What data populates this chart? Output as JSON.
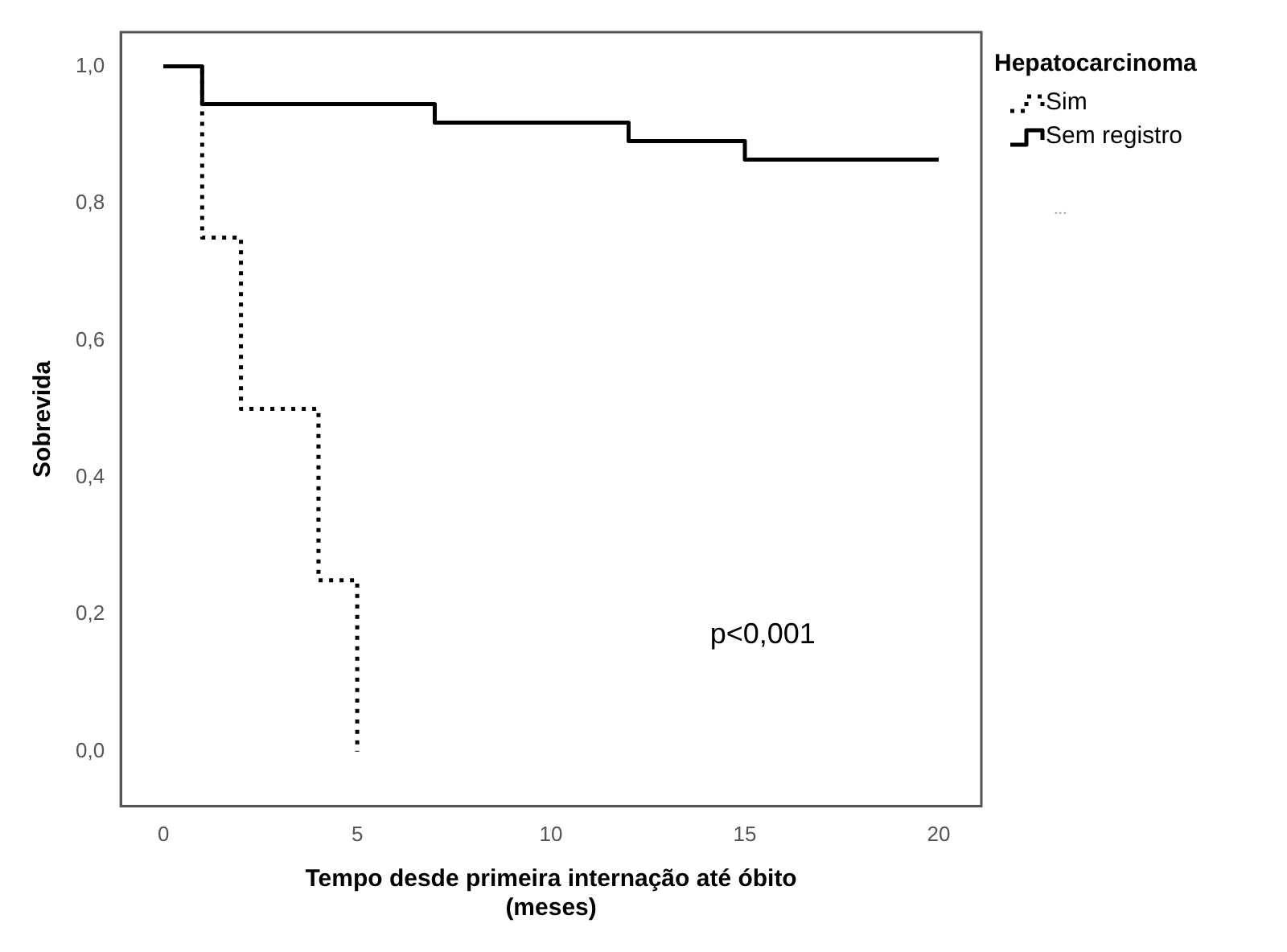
{
  "chart_data": {
    "type": "step",
    "xlabel": "Tempo desde primeira internação até óbito\n(meses)",
    "ylabel": "Sobrevida",
    "legend_title": "Hepatocarcinoma",
    "legend": "right",
    "xlim": [
      -1.1,
      21.1
    ],
    "xticks": [
      0,
      5,
      10,
      15,
      20
    ],
    "ylim": [
      -0.08,
      1.05
    ],
    "yticks": [
      {
        "value": 0,
        "label": "0,0"
      },
      {
        "value": 0.2,
        "label": "0,2"
      },
      {
        "value": 0.4,
        "label": "0,4"
      },
      {
        "value": 0.6,
        "label": "0,6"
      },
      {
        "value": 0.8,
        "label": "0,8"
      },
      {
        "value": 1,
        "label": "1,0"
      }
    ],
    "grid": false,
    "marker": "none",
    "series": [
      {
        "name": "Sim",
        "color": "#000000",
        "line_style": "dotted",
        "x": [
          0,
          1,
          2,
          4,
          5
        ],
        "values": [
          1,
          0.75,
          0.5,
          0.25,
          0
        ]
      },
      {
        "name": "Sem registro",
        "color": "#000000",
        "line_style": "solid",
        "x": [
          0,
          1,
          7,
          12,
          15,
          20
        ],
        "values": [
          1,
          0.945,
          0.918,
          0.891,
          0.864,
          0.864
        ]
      }
    ],
    "annotations": [
      "p<0,001",
      "..."
    ]
  }
}
